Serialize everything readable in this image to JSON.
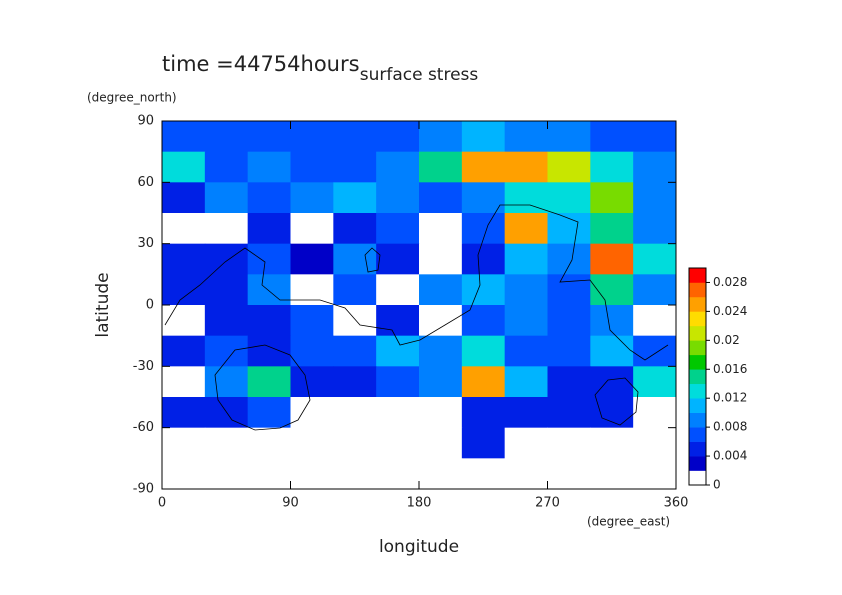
{
  "chart_data": {
    "type": "heatmap",
    "title": "surface stress",
    "subtitle": "time =44754hours",
    "x_label": "longitude",
    "y_label": "latitude",
    "x_unit": "(degree_east)",
    "y_unit": "(degree_north)",
    "x": [
      15,
      45,
      75,
      105,
      135,
      165,
      195,
      225,
      255,
      285,
      315,
      345
    ],
    "y": [
      82.5,
      67.5,
      52.5,
      37.5,
      22.5,
      7.5,
      -7.5,
      -22.5,
      -37.5,
      -52.5,
      -67.5,
      -82.5
    ],
    "values": [
      [
        0.006,
        0.006,
        0.006,
        0.006,
        0.006,
        0.006,
        0.008,
        0.01,
        0.008,
        0.008,
        0.006,
        0.006
      ],
      [
        0.012,
        0.006,
        0.008,
        0.006,
        0.006,
        0.008,
        0.014,
        0.024,
        0.024,
        0.02,
        0.012,
        0.008
      ],
      [
        0.004,
        0.008,
        0.006,
        0.008,
        0.01,
        0.008,
        0.006,
        0.008,
        0.012,
        0.012,
        0.018,
        0.008
      ],
      [
        0,
        0,
        0.004,
        0,
        0.004,
        0.006,
        0,
        0.006,
        0.024,
        0.01,
        0.014,
        0.008
      ],
      [
        0.004,
        0.004,
        0.006,
        0.002,
        0.008,
        0.004,
        0,
        0.004,
        0.01,
        0.008,
        0.026,
        0.012
      ],
      [
        0.004,
        0.004,
        0.008,
        0,
        0.006,
        0,
        0.008,
        0.01,
        0.008,
        0.006,
        0.014,
        0.008
      ],
      [
        0,
        0.004,
        0.004,
        0.006,
        0,
        0.004,
        0,
        0.006,
        0.008,
        0.006,
        0.008,
        0
      ],
      [
        0.004,
        0.006,
        0.004,
        0.006,
        0.006,
        0.01,
        0.008,
        0.012,
        0.006,
        0.006,
        0.01,
        0.006
      ],
      [
        0,
        0.008,
        0.014,
        0.004,
        0.004,
        0.006,
        0.008,
        0.024,
        0.01,
        0.004,
        0.004,
        0.012
      ],
      [
        0.004,
        0.004,
        0.006,
        0,
        0,
        0,
        0,
        0.004,
        0.004,
        0.004,
        0.004,
        0
      ],
      [
        0,
        0,
        0,
        0,
        0,
        0,
        0,
        0.004,
        0,
        0,
        0,
        0
      ],
      [
        0,
        0,
        0,
        0,
        0,
        0,
        0,
        0,
        0,
        0,
        0,
        0
      ]
    ],
    "xlim": [
      0,
      360
    ],
    "xticks": [
      0,
      90,
      180,
      270,
      360
    ],
    "ylim": [
      -90,
      90
    ],
    "yticks": [
      -90,
      -60,
      -30,
      0,
      30,
      60,
      90
    ],
    "colorbar": {
      "lim": [
        0,
        0.03
      ],
      "ticks": [
        0,
        0.004,
        0.008,
        0.012,
        0.016,
        0.02,
        0.024,
        0.028
      ],
      "colors": [
        "#ffffff",
        "#0000c8",
        "#0020e6",
        "#0050ff",
        "#0080ff",
        "#00b4ff",
        "#00dcdc",
        "#00d28c",
        "#00c800",
        "#78dc00",
        "#c8e600",
        "#ffdc00",
        "#ffa000",
        "#ff6400",
        "#ff0000"
      ]
    }
  }
}
